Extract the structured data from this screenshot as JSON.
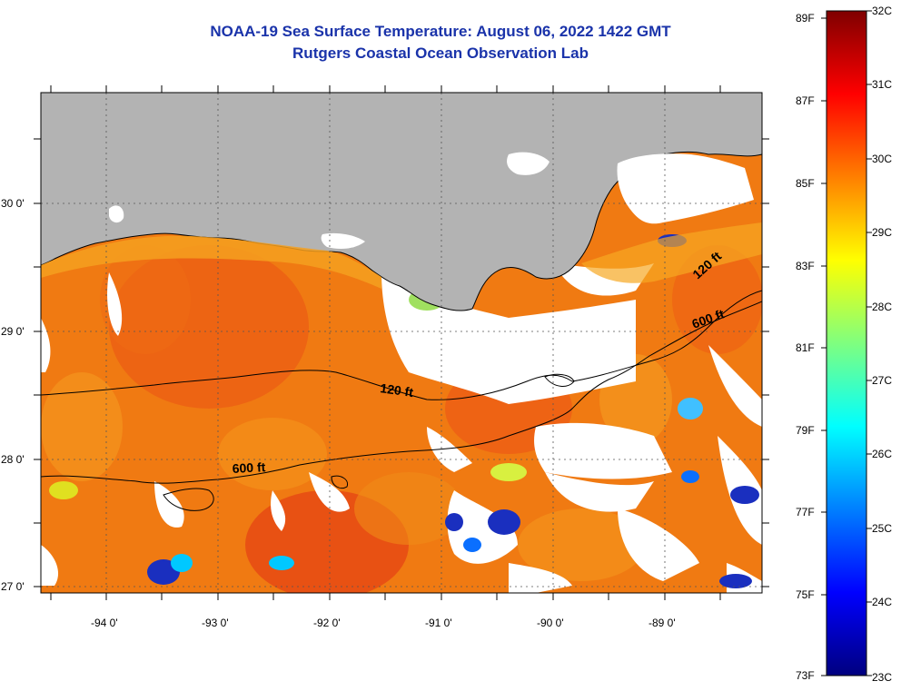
{
  "header": {
    "title": "NOAA-19 Sea Surface Temperature:  August 06, 2022 1422 GMT",
    "subtitle": "Rutgers Coastal Ocean Observation Lab"
  },
  "map": {
    "lon_labels": [
      "-94 0'",
      "-93 0'",
      "-92 0'",
      "-91 0'",
      "-90 0'",
      "-89 0'"
    ],
    "lat_labels": [
      "30 0'",
      "29 0'",
      "28 0'",
      "27 0'"
    ],
    "contour_labels": {
      "c120_left": "120 ft",
      "c120_right": "120 ft",
      "c600_left": "600 ft",
      "c600_right": "600 ft"
    },
    "colors": {
      "land": "#b3b3b3",
      "cloud": "#ffffff",
      "warm": "#f06a10",
      "hot": "#e8461a"
    }
  },
  "colorbar": {
    "f_labels": [
      "89F",
      "87F",
      "85F",
      "83F",
      "81F",
      "79F",
      "77F",
      "75F",
      "73F"
    ],
    "c_labels": [
      "32C",
      "31C",
      "30C",
      "29C",
      "28C",
      "27C",
      "26C",
      "25C",
      "24C",
      "23C"
    ],
    "colors": [
      "#00007f",
      "#0000ff",
      "#007fff",
      "#00ffff",
      "#7fff7f",
      "#ffff00",
      "#ff7f00",
      "#ff0000",
      "#7f0000"
    ]
  }
}
